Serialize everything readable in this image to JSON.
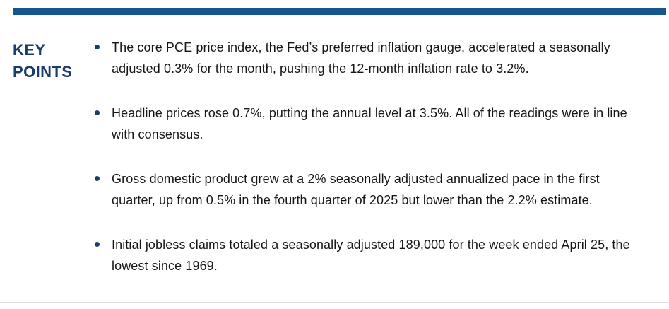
{
  "page": {
    "background": "#FFFFFF",
    "accent_bar_color": "#15568C",
    "heading_color": "#1A3C6E",
    "bullet_color": "#1A3C6E",
    "text_color": "#161616",
    "bottom_divider_color": "#E0E0E0"
  },
  "key_points": {
    "heading": "KEY POINTS",
    "bullets": [
      "The core PCE price index, the Fed’s preferred inflation gauge, accelerated a seasonally adjusted 0.3% for the month, pushing the 12-month inflation rate to 3.2%.",
      "Headline prices rose 0.7%, putting the annual level at 3.5%. All of the readings were in line with consensus.",
      "Gross domestic product grew at a 2% seasonally adjusted annualized pace in the first quarter, up from 0.5% in the fourth quarter of 2025 but lower than the 2.2% estimate.",
      "Initial jobless claims totaled a seasonally adjusted 189,000 for the week ended April 25, the lowest since 1969."
    ]
  }
}
